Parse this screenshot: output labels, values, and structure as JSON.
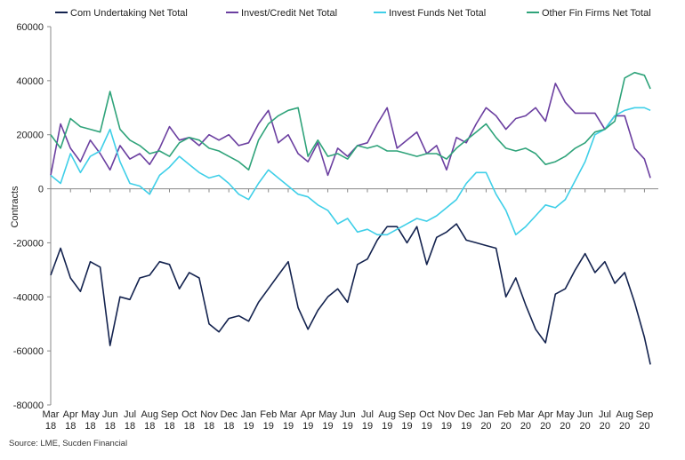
{
  "chart_data": {
    "type": "line",
    "title": "",
    "xlabel": "",
    "ylabel": "Contracts",
    "ylim": [
      -80000,
      60000
    ],
    "yticks": [
      -80000,
      -60000,
      -40000,
      -20000,
      0,
      20000,
      40000,
      60000
    ],
    "ytick_labels": [
      "-80000",
      "-60000",
      "-40000",
      "-20000",
      "0",
      "20000",
      "40000",
      "60000"
    ],
    "grid": false,
    "legend_position": "top",
    "x_tick_labels": [
      [
        "Mar",
        "18"
      ],
      [
        "Apr",
        "18"
      ],
      [
        "May",
        "18"
      ],
      [
        "Jun",
        "18"
      ],
      [
        "Jul",
        "18"
      ],
      [
        "Aug",
        "18"
      ],
      [
        "Sep",
        "18"
      ],
      [
        "Oct",
        "18"
      ],
      [
        "Nov",
        "18"
      ],
      [
        "Dec",
        "18"
      ],
      [
        "Jan",
        "19"
      ],
      [
        "Feb",
        "19"
      ],
      [
        "Mar",
        "19"
      ],
      [
        "Apr",
        "19"
      ],
      [
        "May",
        "19"
      ],
      [
        "Jun",
        "19"
      ],
      [
        "Jul",
        "19"
      ],
      [
        "Aug",
        "19"
      ],
      [
        "Sep",
        "19"
      ],
      [
        "Oct",
        "19"
      ],
      [
        "Nov",
        "19"
      ],
      [
        "Dec",
        "19"
      ],
      [
        "Jan",
        "20"
      ],
      [
        "Feb",
        "20"
      ],
      [
        "Mar",
        "20"
      ],
      [
        "Apr",
        "20"
      ],
      [
        "May",
        "20"
      ],
      [
        "Jun",
        "20"
      ],
      [
        "Jul",
        "20"
      ],
      [
        "Aug",
        "20"
      ],
      [
        "Sep",
        "20"
      ]
    ],
    "x_month_index": [
      0,
      1,
      2,
      3,
      4,
      5,
      6,
      7,
      8,
      9,
      10,
      11,
      12,
      13,
      14,
      15,
      16,
      17,
      18,
      19,
      20,
      21,
      22,
      23,
      24,
      25,
      26,
      27,
      28,
      29,
      30
    ],
    "series": [
      {
        "name": "Com Undertaking Net Total",
        "color": "#14234f",
        "x": [
          0,
          0.5,
          1,
          1.5,
          2,
          2.5,
          3,
          3.5,
          4,
          4.5,
          5,
          5.5,
          6,
          6.5,
          7,
          7.5,
          8,
          8.5,
          9,
          9.5,
          10,
          10.5,
          11,
          11.5,
          12,
          12.5,
          13,
          13.5,
          14,
          14.5,
          15,
          15.5,
          16,
          16.5,
          17,
          17.5,
          18,
          18.5,
          19,
          19.5,
          20,
          20.5,
          21,
          21.5,
          22,
          22.5,
          23,
          23.5,
          24,
          24.5,
          25,
          25.5,
          26,
          26.5,
          27,
          27.5,
          28,
          28.5,
          29,
          29.5,
          30,
          30.3
        ],
        "values": [
          -32000,
          -22000,
          -33000,
          -38000,
          -27000,
          -29000,
          -58000,
          -40000,
          -41000,
          -33000,
          -32000,
          -27000,
          -28000,
          -37000,
          -31000,
          -33000,
          -50000,
          -53000,
          -48000,
          -47000,
          -49000,
          -42000,
          -37000,
          -32000,
          -27000,
          -44000,
          -52000,
          -45000,
          -40000,
          -37000,
          -42000,
          -28000,
          -26000,
          -19000,
          -14000,
          -14000,
          -20000,
          -14000,
          -28000,
          -18000,
          -16000,
          -13000,
          -19000,
          -20000,
          -21000,
          -22000,
          -40000,
          -33000,
          -43000,
          -52000,
          -57000,
          -39000,
          -37000,
          -30000,
          -24000,
          -31000,
          -27000,
          -35000,
          -31000,
          -42000,
          -55000,
          -65000
        ]
      },
      {
        "name": "Invest/Credit Net Total",
        "color": "#6b3fa0",
        "x": [
          0,
          0.5,
          1,
          1.5,
          2,
          2.5,
          3,
          3.5,
          4,
          4.5,
          5,
          5.5,
          6,
          6.5,
          7,
          7.5,
          8,
          8.5,
          9,
          9.5,
          10,
          10.5,
          11,
          11.5,
          12,
          12.5,
          13,
          13.5,
          14,
          14.5,
          15,
          15.5,
          16,
          16.5,
          17,
          17.5,
          18,
          18.5,
          19,
          19.5,
          20,
          20.5,
          21,
          21.5,
          22,
          22.5,
          23,
          23.5,
          24,
          24.5,
          25,
          25.5,
          26,
          26.5,
          27,
          27.5,
          28,
          28.5,
          29,
          29.5,
          30,
          30.3
        ],
        "values": [
          5000,
          24000,
          15000,
          10000,
          18000,
          13000,
          7000,
          16000,
          11000,
          13000,
          9000,
          15000,
          23000,
          18000,
          19000,
          16000,
          20000,
          18000,
          20000,
          16000,
          17000,
          24000,
          29000,
          17000,
          20000,
          13000,
          10000,
          17000,
          5000,
          15000,
          12000,
          16000,
          17000,
          24000,
          30000,
          15000,
          18000,
          21000,
          13000,
          16000,
          7000,
          19000,
          17000,
          24000,
          30000,
          27000,
          22000,
          26000,
          27000,
          30000,
          25000,
          39000,
          32000,
          28000,
          28000,
          28000,
          22000,
          27000,
          27000,
          15000,
          11000,
          4000
        ]
      },
      {
        "name": "Invest Funds Net Total",
        "color": "#3fcfe8",
        "x": [
          0,
          0.5,
          1,
          1.5,
          2,
          2.5,
          3,
          3.5,
          4,
          4.5,
          5,
          5.5,
          6,
          6.5,
          7,
          7.5,
          8,
          8.5,
          9,
          9.5,
          10,
          10.5,
          11,
          11.5,
          12,
          12.5,
          13,
          13.5,
          14,
          14.5,
          15,
          15.5,
          16,
          16.5,
          17,
          17.5,
          18,
          18.5,
          19,
          19.5,
          20,
          20.5,
          21,
          21.5,
          22,
          22.5,
          23,
          23.5,
          24,
          24.5,
          25,
          25.5,
          26,
          26.5,
          27,
          27.5,
          28,
          28.5,
          29,
          29.5,
          30,
          30.3
        ],
        "values": [
          5000,
          2000,
          13000,
          6000,
          12000,
          14000,
          22000,
          10000,
          2000,
          1000,
          -2000,
          5000,
          8000,
          12000,
          9000,
          6000,
          4000,
          5000,
          2000,
          -2000,
          -4000,
          2000,
          7000,
          4000,
          1000,
          -2000,
          -3000,
          -6000,
          -8000,
          -13000,
          -11000,
          -16000,
          -15000,
          -17000,
          -17000,
          -15000,
          -13000,
          -11000,
          -12000,
          -10000,
          -7000,
          -4000,
          2000,
          6000,
          6000,
          -2000,
          -8000,
          -17000,
          -14000,
          -10000,
          -6000,
          -7000,
          -4000,
          3000,
          10000,
          20000,
          22000,
          27000,
          29000,
          30000,
          30000,
          29000
        ]
      },
      {
        "name": "Other Fin Firms Net Total",
        "color": "#2fa37a",
        "x": [
          0,
          0.5,
          1,
          1.5,
          2,
          2.5,
          3,
          3.5,
          4,
          4.5,
          5,
          5.5,
          6,
          6.5,
          7,
          7.5,
          8,
          8.5,
          9,
          9.5,
          10,
          10.5,
          11,
          11.5,
          12,
          12.5,
          13,
          13.5,
          14,
          14.5,
          15,
          15.5,
          16,
          16.5,
          17,
          17.5,
          18,
          18.5,
          19,
          19.5,
          20,
          20.5,
          21,
          21.5,
          22,
          22.5,
          23,
          23.5,
          24,
          24.5,
          25,
          25.5,
          26,
          26.5,
          27,
          27.5,
          28,
          28.5,
          29,
          29.5,
          30,
          30.3
        ],
        "values": [
          20000,
          15000,
          26000,
          23000,
          22000,
          21000,
          36000,
          22000,
          18000,
          16000,
          13000,
          14000,
          12000,
          17000,
          19000,
          18000,
          15000,
          14000,
          12000,
          10000,
          7000,
          18000,
          24000,
          27000,
          29000,
          30000,
          12000,
          18000,
          12000,
          13000,
          11000,
          16000,
          15000,
          16000,
          14000,
          14000,
          13000,
          12000,
          13000,
          13000,
          11000,
          15000,
          18000,
          21000,
          24000,
          19000,
          15000,
          14000,
          15000,
          13000,
          9000,
          10000,
          12000,
          15000,
          17000,
          21000,
          22000,
          25000,
          41000,
          43000,
          42000,
          37000
        ]
      }
    ]
  },
  "legend": {
    "items": [
      {
        "label": "Com Undertaking Net Total",
        "color": "#14234f"
      },
      {
        "label": "Invest/Credit Net Total",
        "color": "#6b3fa0"
      },
      {
        "label": "Invest Funds Net Total",
        "color": "#3fcfe8"
      },
      {
        "label": "Other Fin Firms Net Total",
        "color": "#2fa37a"
      }
    ]
  },
  "source": "Source: LME, Sucden Financial"
}
